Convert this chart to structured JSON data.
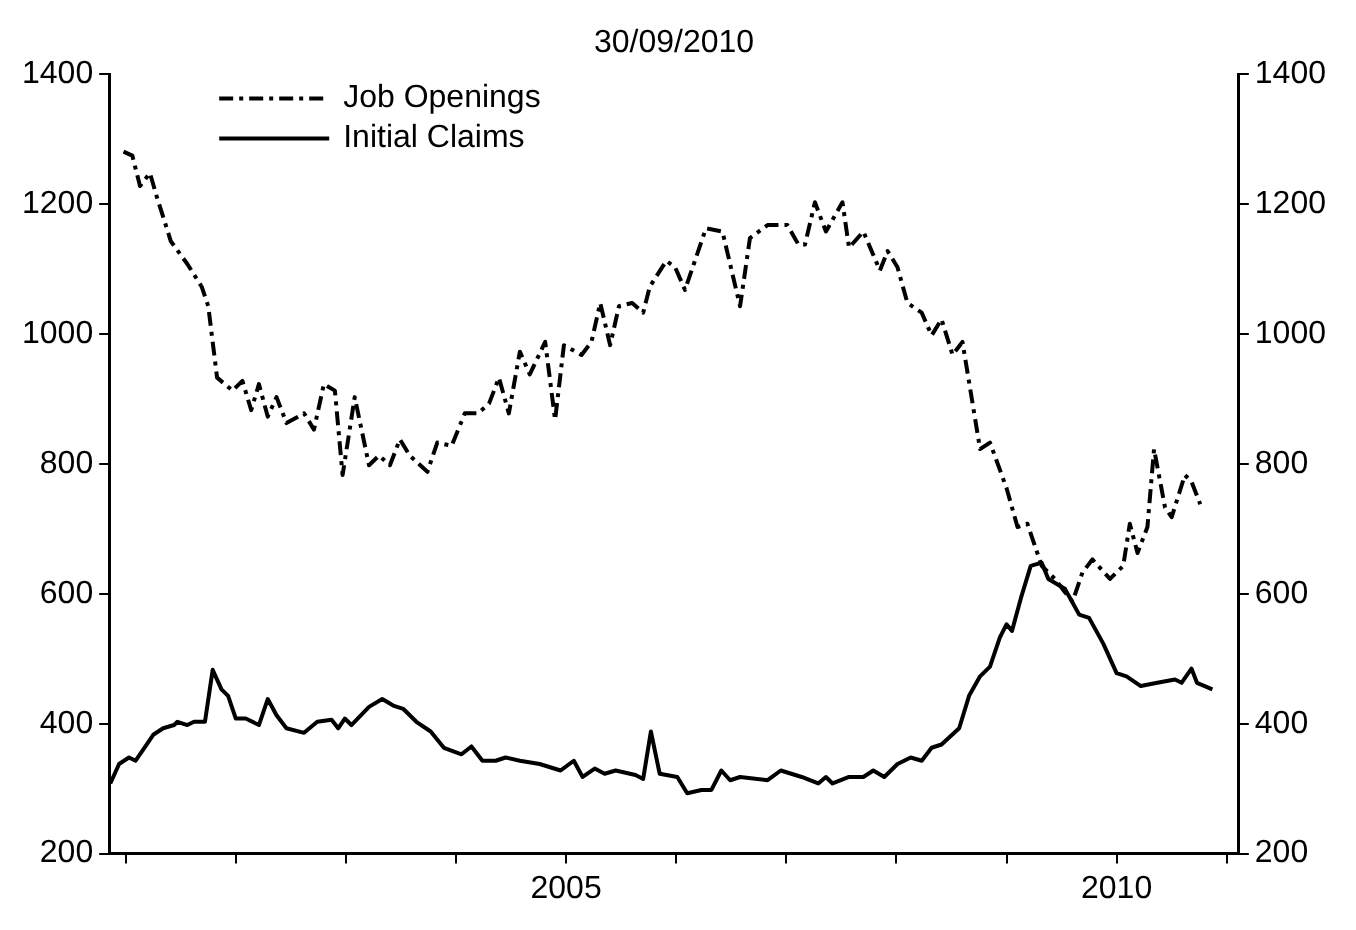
{
  "chart_data": {
    "type": "line",
    "title": "30/09/2010",
    "xlim": [
      2000.85,
      2011.11
    ],
    "xticks": [
      {
        "value": 2001,
        "label": null
      },
      {
        "value": 2002,
        "label": null
      },
      {
        "value": 2003,
        "label": null
      },
      {
        "value": 2004,
        "label": null
      },
      2005,
      {
        "value": 2006,
        "label": null
      },
      {
        "value": 2007,
        "label": null
      },
      {
        "value": 2008,
        "label": null
      },
      {
        "value": 2009,
        "label": null
      },
      2010,
      {
        "value": 2011,
        "label": null
      }
    ],
    "ylim": [
      200,
      1400
    ],
    "yticks": [
      200,
      400,
      600,
      800,
      1000,
      1200,
      1400
    ],
    "y2lim": [
      200,
      1400
    ],
    "y2ticks": [
      200,
      400,
      600,
      800,
      1000,
      1200,
      1400
    ],
    "grid": false,
    "legend": "top left",
    "series": [
      {
        "name": "Job Openings",
        "color": "#000000",
        "line_style": "dashed",
        "x": [
          2000.98,
          2001.06,
          2001.13,
          2001.22,
          2001.28,
          2001.41,
          2001.56,
          2001.69,
          2001.75,
          2001.83,
          2001.97,
          2002.06,
          2002.14,
          2002.21,
          2002.29,
          2002.37,
          2002.46,
          2002.62,
          2002.71,
          2002.8,
          2002.9,
          2002.97,
          2003.08,
          2003.21,
          2003.3,
          2003.4,
          2003.49,
          2003.58,
          2003.74,
          2003.83,
          2003.96,
          2004.08,
          2004.2,
          2004.3,
          2004.39,
          2004.48,
          2004.58,
          2004.67,
          2004.81,
          2004.9,
          2004.98,
          2005.14,
          2005.23,
          2005.31,
          2005.4,
          2005.48,
          2005.6,
          2005.7,
          2005.76,
          2005.91,
          2005.99,
          2006.08,
          2006.27,
          2006.42,
          2006.58,
          2006.67,
          2006.83,
          2007.01,
          2007.11,
          2007.17,
          2007.26,
          2007.36,
          2007.51,
          2007.57,
          2007.7,
          2007.85,
          2007.92,
          2008.01,
          2008.1,
          2008.23,
          2008.32,
          2008.41,
          2008.51,
          2008.6,
          2008.76,
          2008.85,
          2009.0,
          2009.1,
          2009.19,
          2009.32,
          2009.44,
          2009.53,
          2009.6,
          2009.69,
          2009.78,
          2009.94,
          2010.06,
          2010.12,
          2010.19,
          2010.28,
          2010.34,
          2010.44,
          2010.5,
          2010.62,
          2010.68,
          2010.76
        ],
        "values": [
          1281,
          1275,
          1228,
          1248,
          1213,
          1143,
          1108,
          1073,
          1043,
          933,
          913,
          928,
          883,
          923,
          873,
          903,
          863,
          878,
          853,
          923,
          913,
          783,
          903,
          798,
          813,
          798,
          838,
          813,
          788,
          833,
          828,
          878,
          878,
          893,
          933,
          878,
          973,
          938,
          988,
          868,
          983,
          968,
          988,
          1048,
          983,
          1043,
          1048,
          1033,
          1073,
          1113,
          1103,
          1068,
          1163,
          1158,
          1043,
          1148,
          1168,
          1168,
          1138,
          1138,
          1203,
          1158,
          1203,
          1133,
          1158,
          1098,
          1128,
          1103,
          1048,
          1033,
          998,
          1023,
          968,
          988,
          823,
          833,
          763,
          703,
          708,
          643,
          623,
          603,
          588,
          633,
          653,
          623,
          643,
          708,
          663,
          703,
          823,
          733,
          718,
          783,
          773,
          738
        ]
      },
      {
        "name": "Initial Claims",
        "color": "#000000",
        "line_style": "solid",
        "x": [
          2000.86,
          2000.94,
          2001.03,
          2001.09,
          2001.19,
          2001.25,
          2001.34,
          2001.44,
          2001.47,
          2001.56,
          2001.62,
          2001.72,
          2001.79,
          2001.87,
          2001.93,
          2002.0,
          2002.09,
          2002.21,
          2002.29,
          2002.37,
          2002.46,
          2002.62,
          2002.74,
          2002.87,
          2002.93,
          2002.99,
          2003.05,
          2003.21,
          2003.33,
          2003.43,
          2003.52,
          2003.64,
          2003.77,
          2003.89,
          2004.05,
          2004.14,
          2004.24,
          2004.36,
          2004.45,
          2004.58,
          2004.76,
          2004.95,
          2005.07,
          2005.15,
          2005.26,
          2005.35,
          2005.45,
          2005.63,
          2005.7,
          2005.77,
          2005.85,
          2006.01,
          2006.1,
          2006.23,
          2006.32,
          2006.41,
          2006.49,
          2006.58,
          2006.83,
          2006.95,
          2007.14,
          2007.29,
          2007.36,
          2007.42,
          2007.57,
          2007.7,
          2007.79,
          2007.89,
          2008.01,
          2008.13,
          2008.23,
          2008.32,
          2008.41,
          2008.57,
          2008.66,
          2008.76,
          2008.85,
          2008.94,
          2009.0,
          2009.05,
          2009.13,
          2009.22,
          2009.32,
          2009.38,
          2009.53,
          2009.66,
          2009.75,
          2009.88,
          2010.0,
          2010.09,
          2010.22,
          2010.37,
          2010.53,
          2010.59,
          2010.68,
          2010.73,
          2010.87
        ],
        "values": [
          308,
          338,
          348,
          343,
          368,
          383,
          393,
          398,
          403,
          398,
          403,
          403,
          483,
          453,
          443,
          408,
          408,
          398,
          438,
          413,
          393,
          386,
          403,
          406,
          393,
          408,
          398,
          426,
          438,
          428,
          423,
          403,
          388,
          363,
          353,
          365,
          343,
          343,
          348,
          343,
          338,
          328,
          343,
          318,
          331,
          323,
          328,
          321,
          315,
          388,
          323,
          318,
          293,
          298,
          298,
          328,
          313,
          318,
          313,
          328,
          318,
          308,
          318,
          308,
          318,
          318,
          328,
          318,
          338,
          348,
          343,
          363,
          368,
          393,
          443,
          473,
          488,
          533,
          553,
          543,
          593,
          643,
          648,
          623,
          608,
          568,
          563,
          523,
          478,
          473,
          458,
          463,
          468,
          463,
          485,
          463,
          453
        ]
      }
    ]
  }
}
